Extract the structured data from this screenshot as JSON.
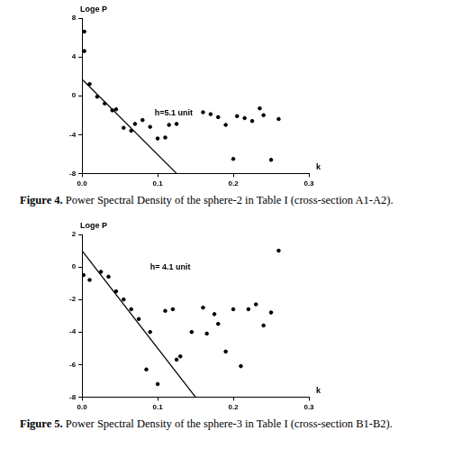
{
  "chart_data": [
    {
      "type": "scatter",
      "figure_label": "Figure 4.",
      "title": "Power Spectral Density of the sphere-2 in Table I (cross-section A1-A2).",
      "x_label": "k",
      "y_label": "Loge P",
      "annotations": [
        "h=5.1 unit"
      ],
      "xlim": [
        0,
        0.3
      ],
      "xticks": [
        {
          "value": 0,
          "label": "0.0"
        },
        {
          "value": 0.1,
          "label": "0.1"
        },
        {
          "value": 0.2,
          "label": "0.2"
        },
        {
          "value": 0.3,
          "label": "0.3"
        }
      ],
      "ylim": [
        -8,
        8
      ],
      "yticks": [
        -8,
        -4,
        0,
        4,
        8
      ],
      "grid": false,
      "series": [
        {
          "type": "scatter",
          "color": "#000000",
          "marker": "circle",
          "x": [
            0.003,
            0.003,
            0.01,
            0.02,
            0.03,
            0.04,
            0.045,
            0.055,
            0.065,
            0.07,
            0.08,
            0.09,
            0.1,
            0.11,
            0.115,
            0.125,
            0.16,
            0.17,
            0.18,
            0.19,
            0.2,
            0.205,
            0.215,
            0.225,
            0.235,
            0.24,
            0.25,
            0.26
          ],
          "values": [
            6.6,
            4.6,
            1.2,
            -0.1,
            -0.8,
            -1.5,
            -1.4,
            -3.3,
            -3.6,
            -2.9,
            -2.5,
            -3.2,
            -4.4,
            -4.3,
            -3.0,
            -2.9,
            -1.7,
            -1.9,
            -2.2,
            -3.0,
            -6.5,
            -2.1,
            -2.3,
            -2.6,
            -1.3,
            -2.0,
            -6.6,
            -2.4
          ]
        },
        {
          "type": "line",
          "color": "#000000",
          "line_style": "solid",
          "x": [
            0,
            0.125
          ],
          "values": [
            1.7,
            -8
          ]
        }
      ]
    },
    {
      "type": "scatter",
      "figure_label": "Figure 5.",
      "title": "Power Spectral Density of the sphere-3 in Table I (cross-section B1-B2).",
      "x_label": "k",
      "y_label": "Loge P",
      "annotations": [
        "h= 4.1 unit"
      ],
      "xlim": [
        0,
        0.3
      ],
      "xticks": [
        {
          "value": 0,
          "label": "0.0"
        },
        {
          "value": 0.1,
          "label": "0.1"
        },
        {
          "value": 0.2,
          "label": "0.2"
        },
        {
          "value": 0.3,
          "label": "0.3"
        }
      ],
      "ylim": [
        -8,
        2
      ],
      "yticks": [
        -8,
        -6,
        -4,
        -2,
        0,
        2
      ],
      "grid": false,
      "series": [
        {
          "type": "scatter",
          "color": "#000000",
          "marker": "circle",
          "x": [
            0.002,
            0.01,
            0.025,
            0.035,
            0.045,
            0.055,
            0.065,
            0.075,
            0.085,
            0.09,
            0.1,
            0.11,
            0.12,
            0.125,
            0.13,
            0.145,
            0.16,
            0.165,
            0.175,
            0.18,
            0.19,
            0.2,
            0.21,
            0.22,
            0.23,
            0.24,
            0.25,
            0.26
          ],
          "values": [
            -0.5,
            -0.8,
            -0.3,
            -0.6,
            -1.5,
            -2.0,
            -2.6,
            -3.2,
            -6.3,
            -4.0,
            -7.2,
            -2.7,
            -2.6,
            -5.7,
            -5.5,
            -4.0,
            -2.5,
            -4.1,
            -2.9,
            -3.5,
            -5.2,
            -2.6,
            -6.1,
            -2.6,
            -2.3,
            -3.6,
            -2.8,
            1.0
          ]
        },
        {
          "type": "line",
          "color": "#000000",
          "line_style": "solid",
          "x": [
            0,
            0.15
          ],
          "values": [
            1.0,
            -8
          ]
        }
      ]
    }
  ]
}
